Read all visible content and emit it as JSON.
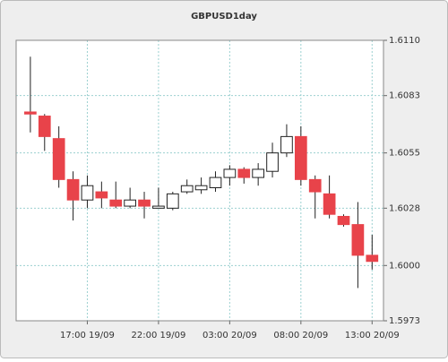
{
  "chart_data": {
    "type": "candlestick",
    "title": "GBPUSD1day",
    "x": [
      0,
      1,
      2,
      3,
      4,
      5,
      6,
      7,
      8,
      9,
      10,
      11,
      12,
      13,
      14,
      15,
      16,
      17,
      18,
      19,
      20,
      21,
      22,
      23,
      24
    ],
    "open": [
      1.6075,
      1.6073,
      1.6062,
      1.6042,
      1.6032,
      1.6036,
      1.6032,
      1.6029,
      1.6032,
      1.6028,
      1.6028,
      1.6036,
      1.6037,
      1.6038,
      1.6043,
      1.6047,
      1.6043,
      1.6046,
      1.6055,
      1.6063,
      1.6042,
      1.6035,
      1.6024,
      1.602,
      1.6005
    ],
    "high": [
      1.6102,
      1.6074,
      1.6068,
      1.6046,
      1.6044,
      1.6041,
      1.6041,
      1.6038,
      1.6036,
      1.6038,
      1.6036,
      1.6042,
      1.6043,
      1.6046,
      1.6049,
      1.6048,
      1.605,
      1.606,
      1.6069,
      1.6068,
      1.6044,
      1.6044,
      1.6025,
      1.6031,
      1.6015
    ],
    "low": [
      1.6065,
      1.6056,
      1.6038,
      1.6022,
      1.6028,
      1.6028,
      1.6028,
      1.6028,
      1.6023,
      1.6028,
      1.6027,
      1.6035,
      1.6035,
      1.6036,
      1.6039,
      1.604,
      1.6039,
      1.6043,
      1.6053,
      1.6039,
      1.6023,
      1.6023,
      1.6019,
      1.5989,
      1.5998
    ],
    "close": [
      1.6074,
      1.6063,
      1.6042,
      1.6032,
      1.6039,
      1.6033,
      1.6029,
      1.6032,
      1.6029,
      1.6029,
      1.6035,
      1.6039,
      1.6039,
      1.6043,
      1.6047,
      1.6043,
      1.6047,
      1.6055,
      1.6063,
      1.6042,
      1.6036,
      1.6025,
      1.602,
      1.6005,
      1.6002
    ],
    "up_color": "#ffffff",
    "down_color": "#e8434a",
    "xlim": [
      -1,
      24.8
    ],
    "xticks": [
      {
        "value": 4,
        "label": "17:00 19/09"
      },
      {
        "value": 9,
        "label": "22:00 19/09"
      },
      {
        "value": 14,
        "label": "03:00 20/09"
      },
      {
        "value": 19,
        "label": "08:00 20/09"
      },
      {
        "value": 24,
        "label": "13:00 20/09"
      }
    ],
    "ylim": [
      1.5973,
      1.611
    ],
    "yticks": [
      1.5973,
      {
        "value": 1.6,
        "label": "1.6000"
      },
      1.6028,
      1.6055,
      1.6083,
      {
        "value": 1.611,
        "label": "1.6110"
      }
    ],
    "grid": true
  }
}
